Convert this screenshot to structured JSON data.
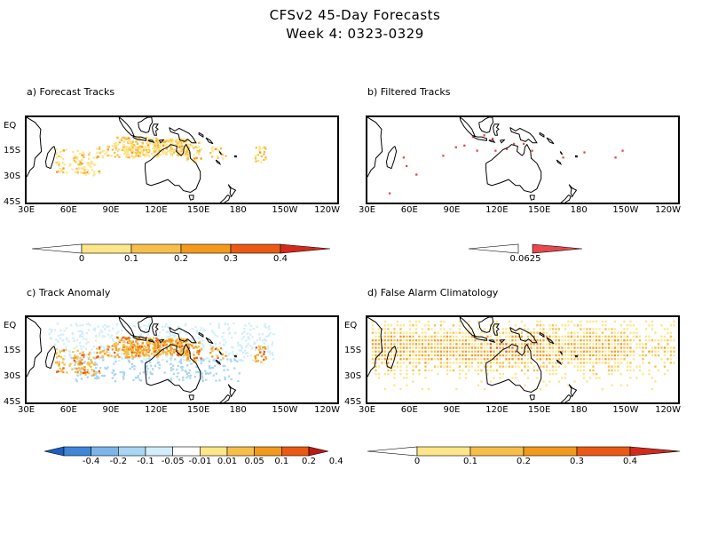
{
  "header": {
    "title_line1": "CFSv2 45-Day Forecasts",
    "title_line2": "Week 4: 0323-0329"
  },
  "panels": [
    {
      "id": "a",
      "title": "a) Forecast Tracks"
    },
    {
      "id": "b",
      "title": "b) Filtered Tracks"
    },
    {
      "id": "c",
      "title": "c) Track Anomaly"
    },
    {
      "id": "d",
      "title": "d) False Alarm Climatology"
    }
  ],
  "axes": {
    "lon_labels": [
      "30E",
      "60E",
      "90E",
      "120E",
      "150E",
      "180",
      "150W",
      "120W"
    ],
    "lat_labels": [
      "EQ",
      "15S",
      "30S",
      "45S"
    ],
    "lon_range": [
      30,
      250
    ],
    "lat_range": [
      -45,
      5
    ]
  },
  "colorbars": {
    "a": {
      "labels": [
        "0",
        "0.1",
        "0.2",
        "0.3",
        "0.4"
      ],
      "colors": [
        "#ffffff",
        "#fde58a",
        "#f7bf4a",
        "#f39a1d",
        "#ea5a14",
        "#d42a1c"
      ]
    },
    "b": {
      "labels": [
        "0.0625"
      ],
      "colors": [
        "#ffffff",
        "#e8474e"
      ]
    },
    "c": {
      "labels": [
        "-0.4",
        "-0.2",
        "-0.1",
        "-0.05",
        "-0.01",
        "0.01",
        "0.05",
        "0.1",
        "0.2",
        "0.4"
      ],
      "colors": [
        "#1f5fbf",
        "#3f86d8",
        "#7db4ea",
        "#a9d6f2",
        "#d2eefa",
        "#ffffff",
        "#fde58a",
        "#f7bf4a",
        "#f39a1d",
        "#ea5a14",
        "#b81c14"
      ]
    },
    "d": {
      "labels": [
        "0",
        "0.1",
        "0.2",
        "0.3",
        "0.4"
      ],
      "colors": [
        "#ffffff",
        "#fde58a",
        "#f7bf4a",
        "#f39a1d",
        "#ea5a14",
        "#d42a1c"
      ]
    }
  }
}
